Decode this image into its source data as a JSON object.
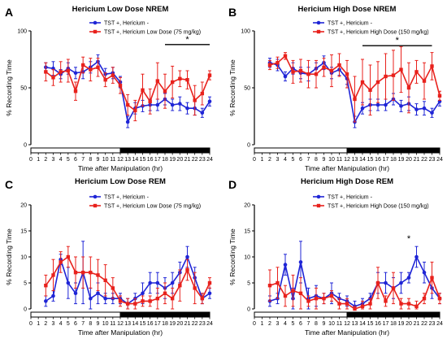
{
  "colors": {
    "blue": "#1f25d6",
    "red": "#e8211c",
    "axis": "#000000"
  },
  "chart_data": [
    {
      "id": "A",
      "type": "line",
      "letter": "A",
      "title": "Hericium Low Dose NREM",
      "xlabel": "Time after Manipulation (hr)",
      "ylabel": "% Recording Time",
      "xlim": [
        0,
        24
      ],
      "ylim": [
        0,
        100
      ],
      "yticks": [
        0,
        50,
        100
      ],
      "xticks": [
        0,
        1,
        2,
        3,
        4,
        5,
        6,
        7,
        8,
        9,
        10,
        11,
        12,
        13,
        14,
        15,
        16,
        17,
        18,
        19,
        20,
        21,
        22,
        23,
        24
      ],
      "light_dark": {
        "light": [
          0,
          12
        ],
        "dark": [
          12,
          24
        ]
      },
      "legend": [
        "TST +, Hericium -",
        "TST +, Hericium Low Dose (75 mg/kg)"
      ],
      "significance": {
        "label": "*",
        "from": 18,
        "to": 24,
        "y": 88
      },
      "series": [
        {
          "name": "TST +, Hericium -",
          "color": "blue",
          "marker": "circle",
          "x": [
            2,
            3,
            4,
            5,
            6,
            7,
            8,
            9,
            10,
            11,
            12,
            13,
            14,
            15,
            16,
            17,
            18,
            19,
            20,
            21,
            22,
            23,
            24
          ],
          "y": [
            68,
            67,
            62,
            67,
            63,
            64,
            68,
            73,
            62,
            63,
            55,
            20,
            32,
            34,
            35,
            35,
            40,
            35,
            36,
            32,
            32,
            28,
            38
          ],
          "err": [
            4,
            6,
            4,
            5,
            5,
            6,
            5,
            6,
            5,
            5,
            5,
            5,
            5,
            5,
            5,
            5,
            5,
            5,
            6,
            5,
            6,
            4,
            4
          ]
        },
        {
          "name": "TST +, Hericium Low Dose (75 mg/kg)",
          "color": "red",
          "marker": "square",
          "x": [
            2,
            3,
            4,
            5,
            6,
            7,
            8,
            9,
            10,
            11,
            12,
            13,
            14,
            15,
            16,
            17,
            18,
            19,
            20,
            21,
            22,
            23,
            24
          ],
          "y": [
            64,
            59,
            64,
            65,
            47,
            70,
            66,
            68,
            57,
            61,
            52,
            35,
            30,
            48,
            38,
            56,
            47,
            55,
            58,
            57,
            39,
            45,
            61
          ],
          "err": [
            8,
            7,
            9,
            10,
            8,
            7,
            10,
            8,
            6,
            7,
            7,
            9,
            9,
            14,
            11,
            16,
            15,
            14,
            7,
            8,
            13,
            10,
            4
          ]
        }
      ]
    },
    {
      "id": "B",
      "type": "line",
      "letter": "B",
      "title": "Hericium High Dose NREM",
      "xlabel": "Time after Manipulation (hr)",
      "ylabel": "% Recording Time",
      "xlim": [
        0,
        24
      ],
      "ylim": [
        0,
        100
      ],
      "yticks": [
        0,
        50,
        100
      ],
      "xticks": [
        0,
        1,
        2,
        3,
        4,
        5,
        6,
        7,
        8,
        9,
        10,
        11,
        12,
        13,
        14,
        15,
        16,
        17,
        18,
        19,
        20,
        21,
        22,
        23,
        24
      ],
      "light_dark": {
        "light": [
          0,
          12
        ],
        "dark": [
          12,
          24
        ]
      },
      "legend": [
        "TST +, Hericium -",
        "TST +, Hericium High Dose (150 mg/kg)"
      ],
      "significance": {
        "label": "*",
        "from": 14,
        "to": 23,
        "y": 87
      },
      "series": [
        {
          "name": "TST +, Hericium -",
          "color": "blue",
          "marker": "circle",
          "x": [
            2,
            3,
            4,
            5,
            6,
            7,
            8,
            9,
            10,
            11,
            12,
            13,
            14,
            15,
            16,
            17,
            18,
            19,
            20,
            21,
            22,
            23,
            24
          ],
          "y": [
            72,
            70,
            60,
            67,
            63,
            62,
            67,
            72,
            63,
            66,
            58,
            20,
            32,
            35,
            35,
            35,
            40,
            34,
            36,
            31,
            32,
            28,
            38
          ],
          "err": [
            4,
            5,
            4,
            5,
            5,
            6,
            5,
            6,
            5,
            5,
            5,
            5,
            5,
            5,
            5,
            5,
            5,
            5,
            6,
            5,
            6,
            4,
            4
          ]
        },
        {
          "name": "TST +, Hericium High Dose (150 mg/kg)",
          "color": "red",
          "marker": "square",
          "x": [
            2,
            3,
            4,
            5,
            6,
            7,
            8,
            9,
            10,
            11,
            12,
            13,
            14,
            15,
            16,
            17,
            18,
            19,
            20,
            21,
            22,
            23,
            24
          ],
          "y": [
            70,
            72,
            78,
            64,
            65,
            62,
            62,
            68,
            65,
            70,
            62,
            40,
            55,
            48,
            55,
            60,
            61,
            66,
            50,
            64,
            56,
            69,
            43
          ],
          "err": [
            4,
            5,
            3,
            10,
            10,
            12,
            12,
            8,
            14,
            10,
            12,
            20,
            20,
            22,
            18,
            20,
            22,
            20,
            22,
            10,
            16,
            12,
            4
          ]
        }
      ]
    },
    {
      "id": "C",
      "type": "line",
      "letter": "C",
      "title": "Hericium Low Dose REM",
      "xlabel": "Time after Manipulation (hr)",
      "ylabel": "% Recording Time",
      "xlim": [
        0,
        24
      ],
      "ylim": [
        0,
        20
      ],
      "yticks": [
        0,
        5,
        10,
        15,
        20
      ],
      "xticks": [
        0,
        1,
        2,
        3,
        4,
        5,
        6,
        7,
        8,
        9,
        10,
        11,
        12,
        13,
        14,
        15,
        16,
        17,
        18,
        19,
        20,
        21,
        22,
        23,
        24
      ],
      "light_dark": {
        "light": [
          0,
          12
        ],
        "dark": [
          12,
          24
        ]
      },
      "legend": [
        "TST +, Hericium -",
        "TST +, Hericium Low Dose (75 mg/kg)"
      ],
      "series": [
        {
          "name": "TST +, Hericium -",
          "color": "blue",
          "marker": "circle",
          "x": [
            2,
            3,
            4,
            5,
            6,
            7,
            8,
            9,
            10,
            11,
            12,
            13,
            14,
            15,
            16,
            17,
            18,
            19,
            20,
            21,
            22,
            23,
            24
          ],
          "y": [
            1.5,
            2.5,
            9.5,
            5,
            3,
            7,
            2,
            3,
            2,
            2,
            2,
            1,
            2,
            3,
            5,
            5,
            4,
            5,
            7,
            10,
            6,
            2,
            3
          ],
          "err": [
            1,
            1,
            1,
            3,
            2,
            6,
            2,
            2,
            1,
            1,
            1,
            1,
            1,
            2,
            2,
            2,
            2,
            2,
            2,
            2,
            2,
            1,
            1
          ]
        },
        {
          "name": "TST +, Hericium Low Dose (75 mg/kg)",
          "color": "red",
          "marker": "square",
          "x": [
            2,
            3,
            4,
            5,
            6,
            7,
            8,
            9,
            10,
            11,
            12,
            13,
            14,
            15,
            16,
            17,
            18,
            19,
            20,
            21,
            22,
            23,
            24
          ],
          "y": [
            4.5,
            6.5,
            9,
            10,
            7,
            7,
            7,
            6.5,
            5.5,
            4,
            1.5,
            1,
            1,
            1.5,
            1.5,
            2,
            3,
            2,
            4.5,
            7.5,
            4,
            2,
            5
          ],
          "err": [
            2,
            3,
            2,
            2,
            3,
            3,
            3,
            3,
            3,
            2,
            1,
            1,
            1,
            1,
            1,
            2,
            2,
            2,
            3,
            2,
            3,
            1,
            1
          ]
        }
      ]
    },
    {
      "id": "D",
      "type": "line",
      "letter": "D",
      "title": "Hericium High Dose REM",
      "xlabel": "Time after Manipulation (hr)",
      "ylabel": "% Recording Time",
      "xlim": [
        0,
        24
      ],
      "ylim": [
        0,
        20
      ],
      "yticks": [
        0,
        5,
        10,
        15,
        20
      ],
      "xticks": [
        0,
        1,
        2,
        3,
        4,
        5,
        6,
        7,
        8,
        9,
        10,
        11,
        12,
        13,
        14,
        15,
        16,
        17,
        18,
        19,
        20,
        21,
        22,
        23,
        24
      ],
      "light_dark": {
        "light": [
          0,
          12
        ],
        "dark": [
          12,
          24
        ]
      },
      "legend": [
        "TST +, Hericium -",
        "TST +, Hericium High Dose (150 mg/kg)"
      ],
      "significance": {
        "label": "*",
        "from": 20,
        "to": 20,
        "y": 12.5,
        "point": true
      },
      "series": [
        {
          "name": "TST +, Hericium -",
          "color": "blue",
          "marker": "circle",
          "x": [
            2,
            3,
            4,
            5,
            6,
            7,
            8,
            9,
            10,
            11,
            12,
            13,
            14,
            15,
            16,
            17,
            18,
            19,
            20,
            21,
            22,
            23,
            24
          ],
          "y": [
            1.5,
            2,
            8.5,
            2,
            9,
            2,
            2.5,
            2,
            3,
            2,
            1.5,
            0.5,
            1,
            2,
            5,
            5,
            4,
            5,
            6,
            10,
            7,
            4,
            2
          ],
          "err": [
            1,
            1,
            2,
            2,
            4,
            2,
            2,
            1,
            2,
            1,
            1,
            1,
            1,
            1,
            2,
            2,
            2,
            2,
            1,
            2,
            2,
            2,
            1
          ]
        },
        {
          "name": "TST +, Hericium High Dose (150 mg/kg)",
          "color": "red",
          "marker": "square",
          "x": [
            2,
            3,
            4,
            5,
            6,
            7,
            8,
            9,
            10,
            11,
            12,
            13,
            14,
            15,
            16,
            17,
            18,
            19,
            20,
            21,
            22,
            23,
            24
          ],
          "y": [
            4.5,
            5,
            2.5,
            3.5,
            3,
            1.5,
            2,
            2,
            2.5,
            1,
            1,
            0,
            0.5,
            1,
            5,
            1.5,
            4,
            1,
            1,
            0.5,
            2,
            6,
            2
          ],
          "err": [
            3,
            3,
            2,
            3,
            3,
            1,
            2,
            1,
            1,
            1,
            1,
            0.5,
            1,
            1,
            3,
            1,
            3,
            1,
            1,
            1,
            1,
            3,
            1
          ]
        }
      ]
    }
  ]
}
